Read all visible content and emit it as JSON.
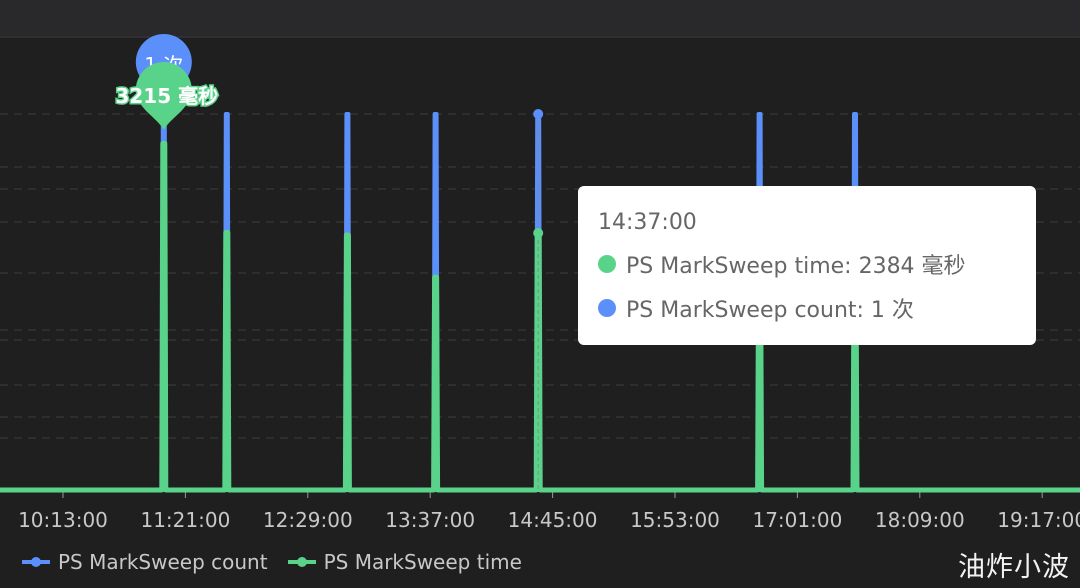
{
  "chart_data": {
    "type": "line",
    "x_tick_labels": [
      "10:13:00",
      "11:21:00",
      "12:29:00",
      "13:37:00",
      "14:45:00",
      "15:53:00",
      "17:01:00",
      "18:09:00",
      "19:17:00"
    ],
    "x_unit": "time",
    "series": [
      {
        "name": "PS MarkSweep count",
        "unit": "次",
        "color": "#5b8ff9",
        "axis": "right",
        "points": [
          [
            "11:09",
            1
          ],
          [
            "11:44",
            1
          ],
          [
            "12:51",
            1
          ],
          [
            "13:40",
            1
          ],
          [
            "14:37",
            1
          ],
          [
            "16:40",
            1
          ],
          [
            "17:33",
            1
          ]
        ]
      },
      {
        "name": "PS MarkSweep time",
        "unit": "毫秒",
        "color": "#5ad38a",
        "axis": "left",
        "points": [
          [
            "11:09",
            3215
          ],
          [
            "11:44",
            2390
          ],
          [
            "12:51",
            2365
          ],
          [
            "13:40",
            1975
          ],
          [
            "14:37",
            2384
          ],
          [
            "16:40",
            2000
          ],
          [
            "17:33",
            2000
          ]
        ]
      }
    ],
    "baseline_value": 0,
    "grid": "dashed horizontal",
    "legend_position": "bottom-left",
    "annotations": {
      "count_max_label": "1 次",
      "time_max_label": "3215 毫秒"
    }
  },
  "tooltip": {
    "time": "14:37:00",
    "rows": [
      {
        "label": "PS MarkSweep time: 2384 毫秒",
        "color": "#5ad38a"
      },
      {
        "label": "PS MarkSweep count: 1 次",
        "color": "#5b8ff9"
      }
    ]
  },
  "legend": [
    {
      "label": "PS MarkSweep count",
      "color": "#5b8ff9"
    },
    {
      "label": "PS MarkSweep time",
      "color": "#5ad38a"
    }
  ],
  "watermark": "油炸小波"
}
